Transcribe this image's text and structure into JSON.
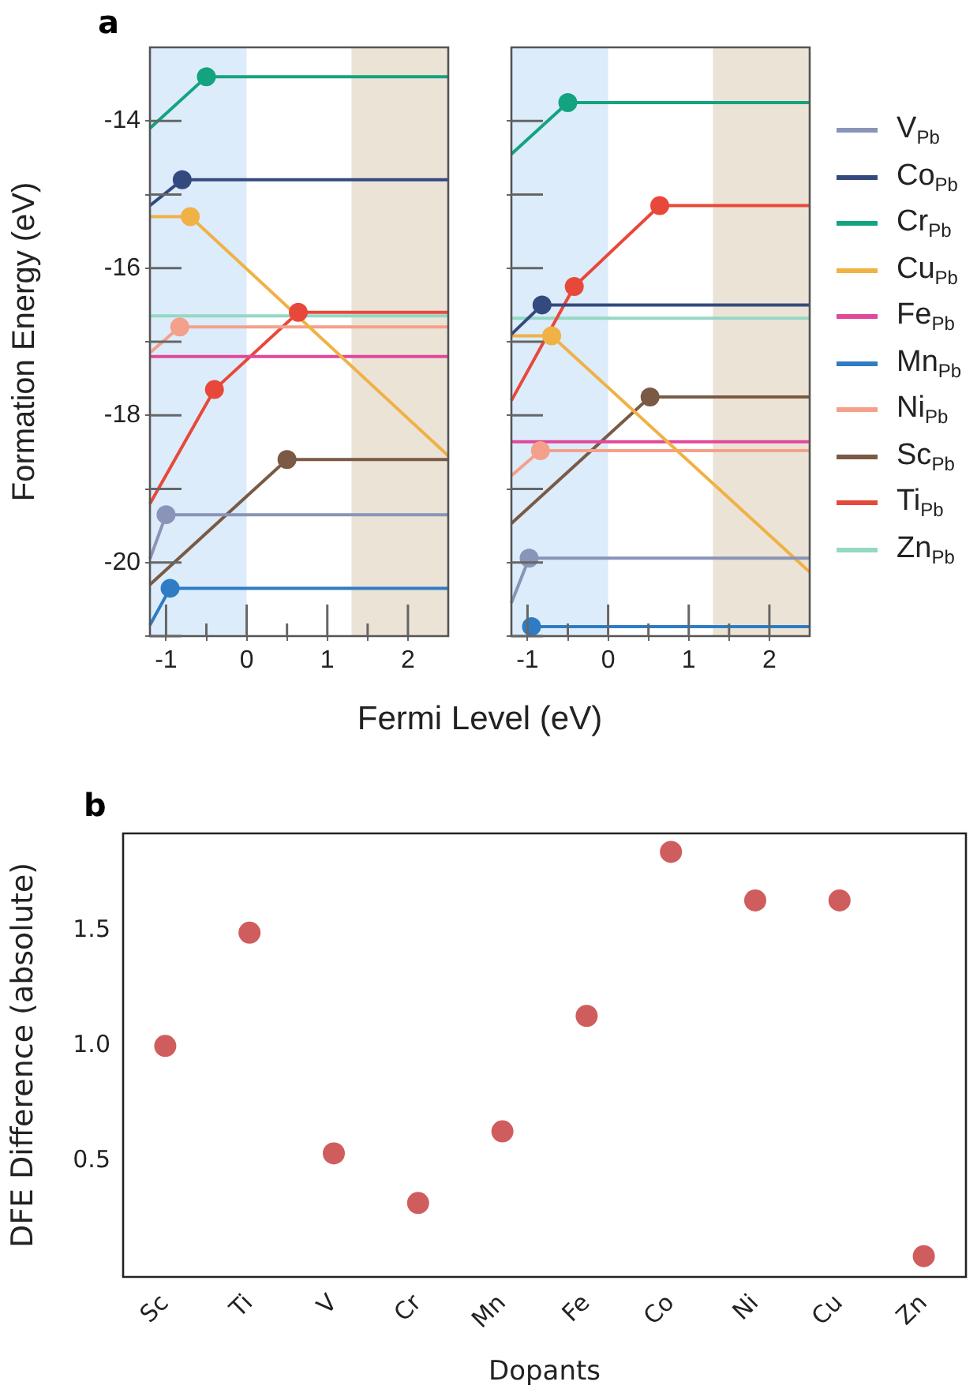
{
  "chart_data": [
    {
      "type": "line",
      "title": "a",
      "ylabel": "Formation Energy (eV)",
      "xlim": [
        -1.2,
        2.5
      ],
      "ylim": [
        -21,
        -13
      ],
      "xticks": [
        -1,
        {
          "value": -0.5,
          "label": null
        },
        0,
        {
          "value": 0.5,
          "label": null
        },
        1,
        {
          "value": 1.5,
          "label": null
        },
        2
      ],
      "yticks": [
        {
          "value": -21,
          "label": null
        },
        -20,
        {
          "value": -19,
          "label": null
        },
        -18,
        {
          "value": -17,
          "label": null
        },
        -16,
        {
          "value": -15,
          "label": null
        },
        -14
      ],
      "bands": [
        {
          "axis": "x",
          "from": -1.2,
          "to": 0,
          "color": "#dcecfb"
        },
        {
          "axis": "x",
          "from": 1.3,
          "to": 2.5,
          "color": "#ebe3d6"
        }
      ],
      "series": [
        {
          "color": "#8a94b8",
          "x": [
            -1.2,
            -1.0,
            2.5
          ],
          "values": [
            -19.95,
            -19.35,
            -19.35
          ]
        },
        {
          "color": "#34497e",
          "x": [
            -1.2,
            -0.8,
            2.5
          ],
          "values": [
            -15.15,
            -14.8,
            -14.8
          ]
        },
        {
          "color": "#14a37f",
          "x": [
            -1.2,
            -0.5,
            2.5
          ],
          "values": [
            -14.1,
            -13.4,
            -13.4
          ]
        },
        {
          "color": "#f0b145",
          "x": [
            -1.2,
            -0.7,
            2.5
          ],
          "values": [
            -15.3,
            -15.3,
            -18.55
          ]
        },
        {
          "color": "#e0489a",
          "x": [
            -1.2,
            2.5
          ],
          "values": [
            -17.2,
            -17.2
          ]
        },
        {
          "color": "#2f7cc4",
          "x": [
            -1.2,
            -0.95,
            2.5
          ],
          "values": [
            -20.85,
            -20.35,
            -20.35
          ]
        },
        {
          "color": "#f4a08a",
          "x": [
            -1.2,
            -0.83,
            2.5
          ],
          "values": [
            -17.15,
            -16.8,
            -16.8
          ]
        },
        {
          "color": "#7a5a45",
          "x": [
            -1.2,
            0.5,
            2.5
          ],
          "values": [
            -20.3,
            -18.6,
            -18.6
          ]
        },
        {
          "color": "#e8483a",
          "x": [
            -1.2,
            -0.4,
            0.64,
            2.5
          ],
          "values": [
            -19.2,
            -17.65,
            -16.6,
            -16.6
          ]
        },
        {
          "color": "#94d8c4",
          "x": [
            -1.2,
            2.5
          ],
          "values": [
            -16.65,
            -16.65
          ]
        },
        {
          "type": "scatter",
          "marker": "circle",
          "x": [
            -0.5,
            -0.8,
            -0.7,
            -0.4,
            0.64,
            -0.83,
            0.5,
            -1.0,
            -0.95
          ],
          "values": [
            -13.4,
            -14.8,
            -15.3,
            -17.65,
            -16.6,
            -16.8,
            -18.6,
            -19.35,
            -20.35
          ],
          "colors": [
            "#14a37f",
            "#34497e",
            "#f0b145",
            "#e8483a",
            "#e8483a",
            "#f4a08a",
            "#7a5a45",
            "#8a94b8",
            "#2f7cc4"
          ]
        }
      ]
    },
    {
      "type": "line",
      "xlabel": "Fermi Level (eV)",
      "legend": "right",
      "tick_labels": "x",
      "xlim": [
        -1.2,
        2.5
      ],
      "ylim": [
        -21,
        -13
      ],
      "xticks": [
        -1,
        {
          "value": -0.5,
          "label": null
        },
        0,
        {
          "value": 0.5,
          "label": null
        },
        1,
        {
          "value": 1.5,
          "label": null
        },
        2
      ],
      "yticks": [
        {
          "value": -21,
          "label": null
        },
        -20,
        {
          "value": -19,
          "label": null
        },
        -18,
        {
          "value": -17,
          "label": null
        },
        -16,
        {
          "value": -15,
          "label": null
        },
        -14
      ],
      "bands": [
        {
          "axis": "x",
          "from": -1.2,
          "to": 0,
          "color": "#dcecfb"
        },
        {
          "axis": "x",
          "from": 1.3,
          "to": 2.5,
          "color": "#ebe3d6"
        }
      ],
      "series": [
        {
          "name": "V$_{Pb}$",
          "color": "#8a94b8",
          "x": [
            -1.2,
            -0.98,
            2.5
          ],
          "values": [
            -20.55,
            -19.94,
            -19.94
          ]
        },
        {
          "name": "Co$_{Pb}$",
          "color": "#34497e",
          "x": [
            -1.2,
            -0.82,
            2.5
          ],
          "values": [
            -16.9,
            -16.5,
            -16.5
          ]
        },
        {
          "name": "Cr$_{Pb}$",
          "color": "#14a37f",
          "x": [
            -1.2,
            -0.5,
            2.5
          ],
          "values": [
            -14.45,
            -13.75,
            -13.75
          ]
        },
        {
          "name": "Cu$_{Pb}$",
          "color": "#f0b145",
          "x": [
            -1.2,
            -0.7,
            2.5
          ],
          "values": [
            -16.92,
            -16.92,
            -20.13
          ]
        },
        {
          "name": "Fe$_{Pb}$",
          "color": "#e0489a",
          "x": [
            -1.2,
            2.5
          ],
          "values": [
            -18.36,
            -18.36
          ]
        },
        {
          "name": "Mn$_{Pb}$",
          "color": "#2f7cc4",
          "x": [
            -1.0,
            -0.95,
            2.5
          ],
          "values": [
            -21,
            -20.87,
            -20.87
          ]
        },
        {
          "name": "Ni$_{Pb}$",
          "color": "#f4a08a",
          "x": [
            -1.2,
            -0.84,
            2.5
          ],
          "values": [
            -18.82,
            -18.48,
            -18.48
          ]
        },
        {
          "name": "Sc$_{Pb}$",
          "color": "#7a5a45",
          "x": [
            -1.2,
            0.52,
            2.5
          ],
          "values": [
            -19.47,
            -17.75,
            -17.75
          ]
        },
        {
          "name": "Ti$_{Pb}$",
          "color": "#e8483a",
          "x": [
            -1.2,
            -0.42,
            0.64,
            2.5
          ],
          "values": [
            -17.8,
            -16.25,
            -15.15,
            -15.15
          ]
        },
        {
          "name": "Zn$_{Pb}$",
          "color": "#94d8c4",
          "x": [
            -1.2,
            2.5
          ],
          "values": [
            -16.68,
            -16.68
          ]
        },
        {
          "type": "scatter",
          "marker": "circle",
          "x": [
            -0.5,
            -0.42,
            0.64,
            -0.82,
            -0.7,
            0.52,
            -0.84,
            -0.98,
            -0.95
          ],
          "values": [
            -13.75,
            -16.25,
            -15.15,
            -16.5,
            -16.92,
            -17.75,
            -18.48,
            -19.94,
            -20.87
          ],
          "colors": [
            "#14a37f",
            "#e8483a",
            "#e8483a",
            "#34497e",
            "#f0b145",
            "#7a5a45",
            "#f4a08a",
            "#8a94b8",
            "#2f7cc4"
          ]
        }
      ]
    },
    {
      "type": "scatter",
      "title": "b",
      "xlabel": "Dopants",
      "ylabel": "DFE Difference (absolute)",
      "marker": "circle",
      "color": "#d05d5d",
      "categories": [
        "Sc",
        "Ti",
        "V",
        "Cr",
        "Mn",
        "Fe",
        "Co",
        "Ni",
        "Cu",
        "Zn"
      ],
      "values": [
        1.0,
        1.49,
        0.535,
        0.32,
        0.63,
        1.13,
        1.84,
        1.63,
        1.63,
        0.09
      ],
      "ylim": [
        0,
        1.92
      ],
      "yticks": [
        0.5,
        {
          "value": 1,
          "label": "1.0"
        },
        1.5
      ]
    }
  ]
}
